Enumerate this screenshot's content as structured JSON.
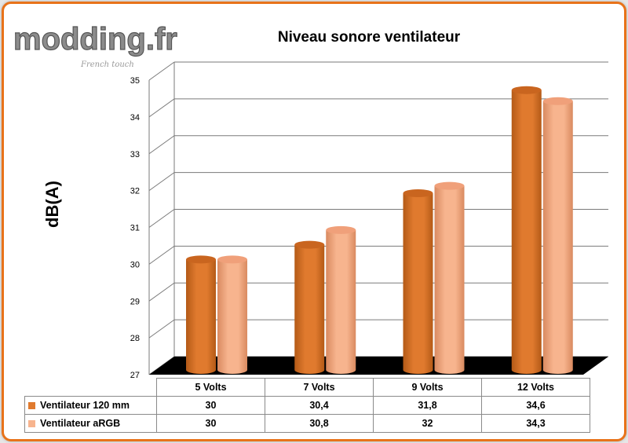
{
  "logo": {
    "text": "modding.fr",
    "tagline": "French touch"
  },
  "chart_data": {
    "type": "bar",
    "title": "Niveau sonore ventilateur",
    "ylabel": "dB(A)",
    "xlabel": "",
    "ylim": [
      27,
      35
    ],
    "yticks": [
      "27",
      "28",
      "29",
      "30",
      "31",
      "32",
      "33",
      "34",
      "35"
    ],
    "grid": true,
    "style": "3d-cylinder",
    "categories": [
      "5 Volts",
      "7 Volts",
      "9 Volts",
      "12 Volts"
    ],
    "series": [
      {
        "name": "Ventilateur 120 mm",
        "values": [
          30,
          30.4,
          31.8,
          34.6
        ],
        "labels": [
          "30",
          "30,4",
          "31,8",
          "34,6"
        ],
        "color": "#e07a2e"
      },
      {
        "name": "Ventilateur aRGB",
        "values": [
          30,
          30.8,
          32,
          34.3
        ],
        "labels": [
          "30",
          "30,8",
          "32",
          "34,3"
        ],
        "color": "#f7b48e"
      }
    ]
  },
  "colors": {
    "frame": "#e8731a",
    "floor": "#000000",
    "grid": "#7a7a7a"
  }
}
